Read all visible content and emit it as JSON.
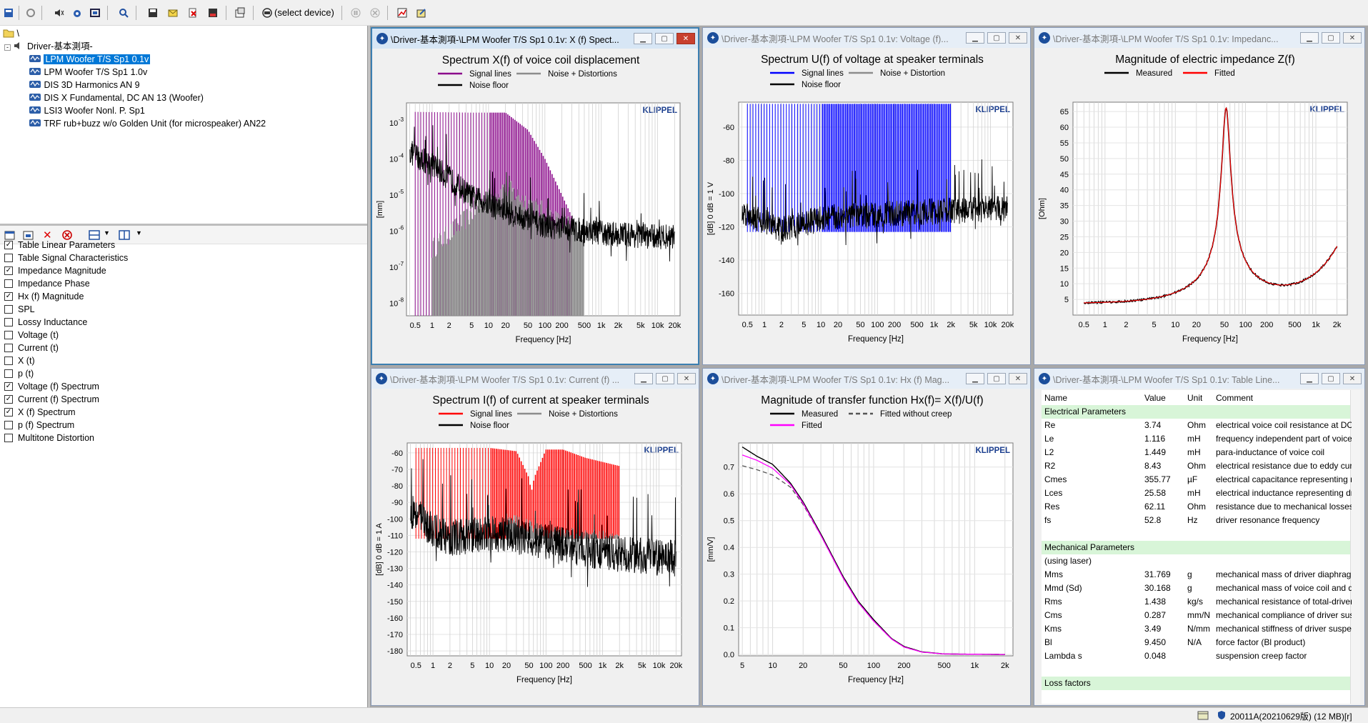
{
  "status": {
    "build": "20011A(20210629版) (12 MB)[r]"
  },
  "toolbar": {
    "device_label": "(select device)"
  },
  "tree": {
    "root": "\\",
    "driver": "Driver-基本測項-",
    "items": [
      "LPM Woofer T/S Sp1 0.1v",
      "LPM Woofer T/S Sp1 1.0v",
      "DIS 3D Harmonics AN 9",
      "DIS X Fundamental, DC AN 13 (Woofer)",
      "LSI3 Woofer Nonl. P. Sp1",
      "TRF rub+buzz w/o Golden Unit (for microspeaker) AN22"
    ]
  },
  "results": [
    {
      "label": "Table Linear Parameters",
      "checked": true
    },
    {
      "label": "Table Signal Characteristics",
      "checked": false
    },
    {
      "label": "Impedance Magnitude",
      "checked": true
    },
    {
      "label": "Impedance Phase",
      "checked": false
    },
    {
      "label": "Hx (f) Magnitude",
      "checked": true
    },
    {
      "label": "SPL",
      "checked": false
    },
    {
      "label": "Lossy Inductance",
      "checked": false
    },
    {
      "label": "Voltage (t)",
      "checked": false
    },
    {
      "label": "Current (t)",
      "checked": false
    },
    {
      "label": "X (t)",
      "checked": false
    },
    {
      "label": "p (t)",
      "checked": false
    },
    {
      "label": "Voltage (f) Spectrum",
      "checked": true
    },
    {
      "label": "Current (f) Spectrum",
      "checked": true
    },
    {
      "label": "X (f) Spectrum",
      "checked": true
    },
    {
      "label": "p (f) Spectrum",
      "checked": false
    },
    {
      "label": "Multitone Distortion",
      "checked": false
    }
  ],
  "windows": {
    "w1": "\\Driver-基本測項-\\LPM Woofer T/S Sp1 0.1v: X (f) Spect...",
    "w2": "\\Driver-基本測項-\\LPM Woofer T/S Sp1 0.1v: Voltage (f)...",
    "w3": "\\Driver-基本測項-\\LPM Woofer T/S Sp1 0.1v: Impedanc...",
    "w4": "\\Driver-基本測項-\\LPM Woofer T/S Sp1 0.1v: Current (f) ...",
    "w5": "\\Driver-基本測項-\\LPM Woofer T/S Sp1 0.1v: Hx (f) Mag...",
    "w6": "\\Driver-基本測項-\\LPM Woofer T/S Sp1 0.1v: Table Line..."
  },
  "brand": "KLIPPEL",
  "colors": {
    "purple": "#8b0a8b",
    "blue": "#0000ff",
    "red": "#ff0000",
    "gray": "#8c8c8c",
    "magenta": "#ff00ff"
  },
  "chart_data": [
    {
      "id": "xf",
      "type": "line",
      "title": "Spectrum X(f) of voice coil displacement",
      "legend": [
        {
          "name": "Signal lines",
          "color": "#8b0a8b"
        },
        {
          "name": "Noise + Distortions",
          "color": "#8c8c8c"
        },
        {
          "name": "Noise floor",
          "color": "#000000"
        }
      ],
      "xlabel": "Frequency [Hz]",
      "ylabel": "[mm]",
      "xscale": "log",
      "xlim": [
        0.35,
        25000
      ],
      "xticks": [
        0.5,
        1,
        2,
        5,
        10,
        20,
        50,
        100,
        200,
        500,
        1000,
        2000,
        5000,
        10000,
        20000
      ],
      "xticklabels": [
        "0.5",
        "1",
        "2",
        "5",
        "10",
        "20",
        "50",
        "100",
        "200",
        "500",
        "1k",
        "2k",
        "5k",
        "10k",
        "20k"
      ],
      "yscale": "log",
      "ylim_exp": [
        -8.35,
        -2.45
      ],
      "yticks_exp": [
        -3,
        -4,
        -5,
        -6,
        -7,
        -8
      ],
      "signal_env": [
        [
          0.5,
          -2.7
        ],
        [
          5,
          -2.72
        ],
        [
          20,
          -2.72
        ],
        [
          50,
          -3.2
        ],
        [
          100,
          -4.0
        ],
        [
          200,
          -5.0
        ],
        [
          300,
          -5.6
        ]
      ],
      "dist_env": [
        [
          1,
          -6.5
        ],
        [
          10,
          -5.1
        ],
        [
          20,
          -4.8
        ],
        [
          50,
          -5.2
        ],
        [
          100,
          -5.5
        ],
        [
          200,
          -5.8
        ],
        [
          500,
          -6.0
        ]
      ],
      "noise_env": [
        [
          0.35,
          -3.9
        ],
        [
          1,
          -4.3
        ],
        [
          5,
          -5.2
        ],
        [
          20,
          -5.6
        ],
        [
          100,
          -6.0
        ],
        [
          1000,
          -6.2
        ],
        [
          10000,
          -6.3
        ],
        [
          20000,
          -6.3
        ]
      ]
    },
    {
      "id": "uf",
      "type": "line",
      "title": "Spectrum U(f) of voltage at speaker terminals",
      "legend": [
        {
          "name": "Signal lines",
          "color": "#0000ff"
        },
        {
          "name": "Noise + Distortion",
          "color": "#8c8c8c"
        },
        {
          "name": "Noise floor",
          "color": "#000000"
        }
      ],
      "xlabel": "Frequency [Hz]",
      "ylabel": "[dB]  0 dB = 1 V",
      "xscale": "log",
      "xlim": [
        0.35,
        25000
      ],
      "xticks": [
        0.5,
        1,
        2,
        5,
        10,
        20,
        50,
        100,
        200,
        500,
        1000,
        2000,
        5000,
        10000,
        20000
      ],
      "xticklabels": [
        "0.5",
        "1",
        "2",
        "5",
        "10",
        "20",
        "50",
        "100",
        "200",
        "500",
        "1k",
        "2k",
        "5k",
        "10k",
        "20k"
      ],
      "ylim": [
        -173,
        -45
      ],
      "yticks": [
        -60,
        -80,
        -100,
        -120,
        -140,
        -160
      ],
      "signal_level": -46,
      "signal_range": [
        0.5,
        2000
      ],
      "noise_env": [
        [
          0.5,
          -115
        ],
        [
          1,
          -120
        ],
        [
          2,
          -125
        ],
        [
          10,
          -118
        ],
        [
          100,
          -116
        ],
        [
          1000,
          -114
        ],
        [
          20000,
          -112
        ]
      ]
    },
    {
      "id": "zf",
      "type": "line",
      "title": "Magnitude of electric impedance Z(f)",
      "legend": [
        {
          "name": "Measured",
          "color": "#000000"
        },
        {
          "name": "Fitted",
          "color": "#ff0000"
        }
      ],
      "xlabel": "Frequency [Hz]",
      "ylabel": "[Ohm]",
      "xscale": "log",
      "xlim": [
        0.35,
        2800
      ],
      "xticks": [
        0.5,
        1,
        2,
        5,
        10,
        20,
        50,
        100,
        200,
        500,
        1000,
        2000
      ],
      "xticklabels": [
        "0.5",
        "1",
        "2",
        "5",
        "10",
        "20",
        "50",
        "100",
        "200",
        "500",
        "1k",
        "2k"
      ],
      "ylim": [
        0,
        68
      ],
      "yticks": [
        5,
        10,
        15,
        20,
        25,
        30,
        35,
        40,
        45,
        50,
        55,
        60,
        65
      ],
      "Re": 3.74,
      "fs": 52.8,
      "Zmax": 66,
      "Q": 3.5,
      "hf_end": 21.5
    },
    {
      "id": "if",
      "type": "line",
      "title": "Spectrum I(f) of current at speaker terminals",
      "legend": [
        {
          "name": "Signal lines",
          "color": "#ff0000"
        },
        {
          "name": "Noise + Distortions",
          "color": "#8c8c8c"
        },
        {
          "name": "Noise floor",
          "color": "#000000"
        }
      ],
      "xlabel": "Frequency [Hz]",
      "ylabel": "[dB]  0 dB = 1 A",
      "xscale": "log",
      "xlim": [
        0.35,
        25000
      ],
      "xticks": [
        0.5,
        1,
        2,
        5,
        10,
        20,
        50,
        100,
        200,
        500,
        1000,
        2000,
        5000,
        10000,
        20000
      ],
      "xticklabels": [
        "0.5",
        "1",
        "2",
        "5",
        "10",
        "20",
        "50",
        "100",
        "200",
        "500",
        "1k",
        "2k",
        "5k",
        "10k",
        "20k"
      ],
      "ylim": [
        -183,
        -54
      ],
      "yticks": [
        -60,
        -70,
        -80,
        -90,
        -100,
        -110,
        -120,
        -130,
        -140,
        -150,
        -160,
        -170,
        -180
      ],
      "signal_env": [
        [
          0.5,
          -57
        ],
        [
          10,
          -57
        ],
        [
          30,
          -59
        ],
        [
          50,
          -75
        ],
        [
          55,
          -84
        ],
        [
          62,
          -75
        ],
        [
          100,
          -58
        ],
        [
          200,
          -58
        ],
        [
          500,
          -63
        ],
        [
          2000,
          -68
        ]
      ],
      "noise_env": [
        [
          0.5,
          -100
        ],
        [
          1,
          -112
        ],
        [
          2,
          -116
        ],
        [
          10,
          -113
        ],
        [
          100,
          -118
        ],
        [
          1000,
          -125
        ],
        [
          20000,
          -128
        ]
      ]
    },
    {
      "id": "hx",
      "type": "line",
      "title": "Magnitude of transfer function Hx(f)= X(f)/U(f)",
      "legend": [
        {
          "name": "Measured",
          "color": "#000000"
        },
        {
          "name": "Fitted without creep",
          "color": "#555555"
        },
        {
          "name": "Fitted",
          "color": "#ff00ff"
        }
      ],
      "xlabel": "Frequency [Hz]",
      "ylabel": "[mm/V]",
      "xscale": "log",
      "xlim": [
        4.6,
        2400
      ],
      "xticks": [
        5,
        10,
        20,
        50,
        100,
        200,
        500,
        1000,
        2000
      ],
      "xticklabels": [
        "5",
        "10",
        "20",
        "50",
        "100",
        "200",
        "500",
        "1k",
        "2k"
      ],
      "ylim": [
        -0.005,
        0.79
      ],
      "yticks": [
        0.0,
        0.1,
        0.2,
        0.3,
        0.4,
        0.5,
        0.6,
        0.7
      ],
      "measured": [
        [
          5,
          0.775
        ],
        [
          7,
          0.74
        ],
        [
          10,
          0.71
        ],
        [
          15,
          0.64
        ],
        [
          20,
          0.57
        ],
        [
          30,
          0.45
        ],
        [
          50,
          0.29
        ],
        [
          70,
          0.2
        ],
        [
          100,
          0.13
        ],
        [
          150,
          0.06
        ],
        [
          200,
          0.03
        ],
        [
          300,
          0.01
        ],
        [
          500,
          0.002
        ],
        [
          2000,
          0.0
        ]
      ],
      "fitted": [
        [
          5,
          0.745
        ],
        [
          7,
          0.725
        ],
        [
          10,
          0.695
        ],
        [
          15,
          0.635
        ],
        [
          20,
          0.565
        ],
        [
          30,
          0.445
        ],
        [
          50,
          0.285
        ],
        [
          70,
          0.195
        ],
        [
          100,
          0.125
        ],
        [
          150,
          0.058
        ],
        [
          200,
          0.028
        ],
        [
          300,
          0.009
        ],
        [
          500,
          0.002
        ],
        [
          2000,
          0.0
        ]
      ],
      "fitted_nocreep": [
        [
          5,
          0.705
        ],
        [
          7,
          0.69
        ],
        [
          10,
          0.67
        ],
        [
          15,
          0.625
        ],
        [
          20,
          0.56
        ],
        [
          30,
          0.445
        ],
        [
          50,
          0.285
        ],
        [
          70,
          0.195
        ],
        [
          100,
          0.125
        ],
        [
          150,
          0.058
        ],
        [
          200,
          0.028
        ],
        [
          300,
          0.009
        ],
        [
          500,
          0.002
        ],
        [
          2000,
          0.0
        ]
      ]
    }
  ],
  "table": {
    "headers": [
      "Name",
      "Value",
      "Unit",
      "Comment"
    ],
    "rows": [
      {
        "g": "Electrical Parameters"
      },
      {
        "n": "Re",
        "v": "3.74",
        "u": "Ohm",
        "c": "electrical voice coil resistance at DC"
      },
      {
        "n": "Le",
        "v": "1.116",
        "u": "mH",
        "c": "frequency independent part of voice coil inductance"
      },
      {
        "n": "L2",
        "v": "1.449",
        "u": "mH",
        "c": "para-inductance of voice coil"
      },
      {
        "n": "R2",
        "v": "8.43",
        "u": "Ohm",
        "c": "electrical resistance due to eddy current losses"
      },
      {
        "n": "Cmes",
        "v": "355.77",
        "u": "µF",
        "c": "electrical capacitance representing moving mass"
      },
      {
        "n": "Lces",
        "v": "25.58",
        "u": "mH",
        "c": "electrical inductance representing driver compliance"
      },
      {
        "n": "Res",
        "v": "62.11",
        "u": "Ohm",
        "c": "resistance due to mechanical losses"
      },
      {
        "n": "fs",
        "v": "52.8",
        "u": "Hz",
        "c": "driver resonance frequency"
      },
      {
        "blank": true
      },
      {
        "g": "Mechanical Parameters"
      },
      {
        "n": "(using laser)"
      },
      {
        "n": "Mms",
        "v": "31.769",
        "u": "g",
        "c": "mechanical mass of driver diaphragm assembly"
      },
      {
        "n": "Mmd (Sd)",
        "v": "30.168",
        "u": "g",
        "c": "mechanical mass of voice coil and diaphragm"
      },
      {
        "n": "Rms",
        "v": "1.438",
        "u": "kg/s",
        "c": "mechanical resistance of  total-driver losses"
      },
      {
        "n": "Cms",
        "v": "0.287",
        "u": "mm/N",
        "c": "mechanical compliance of driver suspension"
      },
      {
        "n": "Kms",
        "v": "3.49",
        "u": "N/mm",
        "c": "mechanical stiffness of driver suspension"
      },
      {
        "n": "Bl",
        "v": "9.450",
        "u": "N/A",
        "c": "force factor (Bl product)"
      },
      {
        "n": "Lambda s",
        "v": "0.048",
        "u": "",
        "c": "suspension creep factor"
      },
      {
        "blank": true
      },
      {
        "g": "Loss factors"
      }
    ]
  }
}
